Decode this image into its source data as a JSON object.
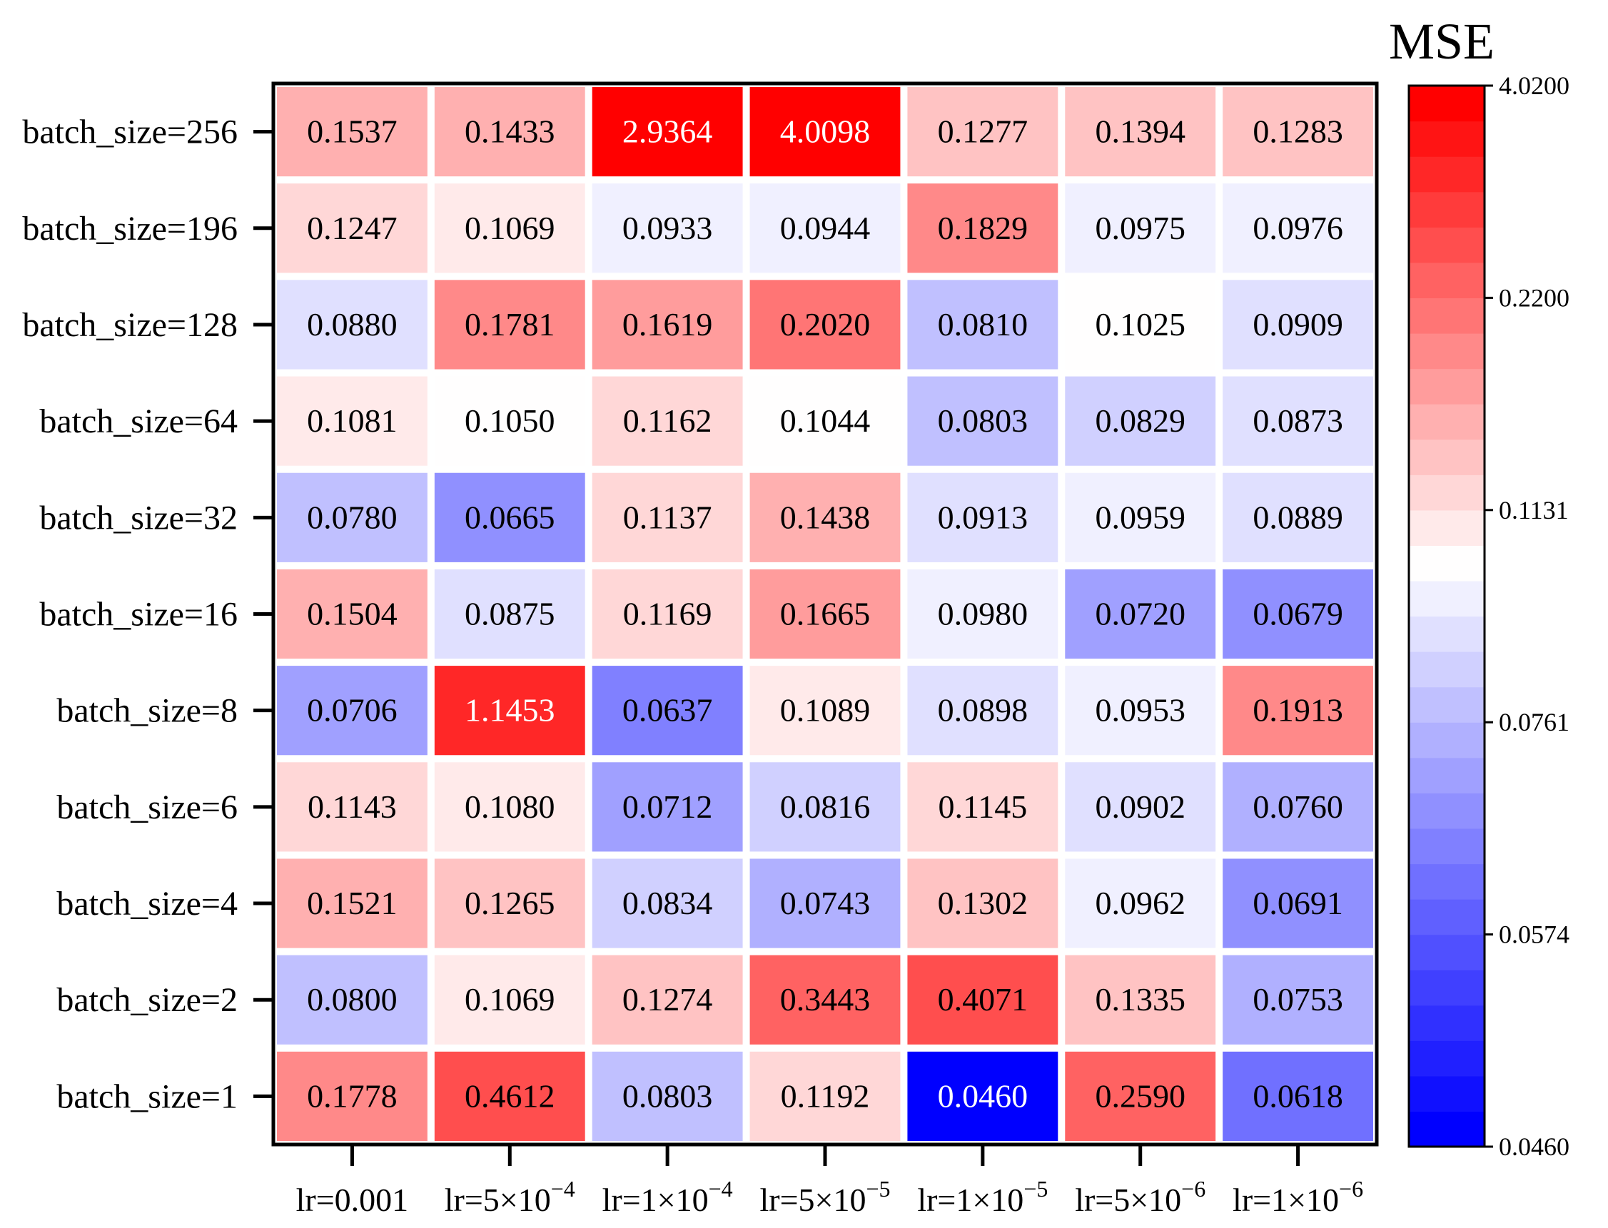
{
  "chart_data": {
    "type": "heatmap",
    "title": "",
    "colorbar_title": "MSE",
    "x_labels": [
      {
        "base": "lr=0.001",
        "sup": ""
      },
      {
        "base": "lr=5×10",
        "sup": "−4"
      },
      {
        "base": "lr=1×10",
        "sup": "−4"
      },
      {
        "base": "lr=5×10",
        "sup": "−5"
      },
      {
        "base": "lr=1×10",
        "sup": "−5"
      },
      {
        "base": "lr=5×10",
        "sup": "−6"
      },
      {
        "base": "lr=1×10",
        "sup": "−6"
      }
    ],
    "y_labels": [
      "batch_size=256",
      "batch_size=196",
      "batch_size=128",
      "batch_size=64",
      "batch_size=32",
      "batch_size=16",
      "batch_size=8",
      "batch_size=6",
      "batch_size=4",
      "batch_size=2",
      "batch_size=1"
    ],
    "values": [
      [
        "0.1537",
        "0.1433",
        "2.9364",
        "4.0098",
        "0.1277",
        "0.1394",
        "0.1283"
      ],
      [
        "0.1247",
        "0.1069",
        "0.0933",
        "0.0944",
        "0.1829",
        "0.0975",
        "0.0976"
      ],
      [
        "0.0880",
        "0.1781",
        "0.1619",
        "0.2020",
        "0.0810",
        "0.1025",
        "0.0909"
      ],
      [
        "0.1081",
        "0.1050",
        "0.1162",
        "0.1044",
        "0.0803",
        "0.0829",
        "0.0873"
      ],
      [
        "0.0780",
        "0.0665",
        "0.1137",
        "0.1438",
        "0.0913",
        "0.0959",
        "0.0889"
      ],
      [
        "0.1504",
        "0.0875",
        "0.1169",
        "0.1665",
        "0.0980",
        "0.0720",
        "0.0679"
      ],
      [
        "0.0706",
        "1.1453",
        "0.0637",
        "0.1089",
        "0.0898",
        "0.0953",
        "0.1913"
      ],
      [
        "0.1143",
        "0.1080",
        "0.0712",
        "0.0816",
        "0.1145",
        "0.0902",
        "0.0760"
      ],
      [
        "0.1521",
        "0.1265",
        "0.0834",
        "0.0743",
        "0.1302",
        "0.0962",
        "0.0691"
      ],
      [
        "0.0800",
        "0.1069",
        "0.1274",
        "0.3443",
        "0.4071",
        "0.1335",
        "0.0753"
      ],
      [
        "0.1778",
        "0.4612",
        "0.0803",
        "0.1192",
        "0.0460",
        "0.2590",
        "0.0618"
      ]
    ],
    "colorbar_ticks": [
      "0.0460",
      "0.0574",
      "0.0761",
      "0.1131",
      "0.2200",
      "4.0200"
    ],
    "color_min": "#0000ff",
    "color_mid": "#ffffff",
    "color_max": "#ff0000"
  }
}
